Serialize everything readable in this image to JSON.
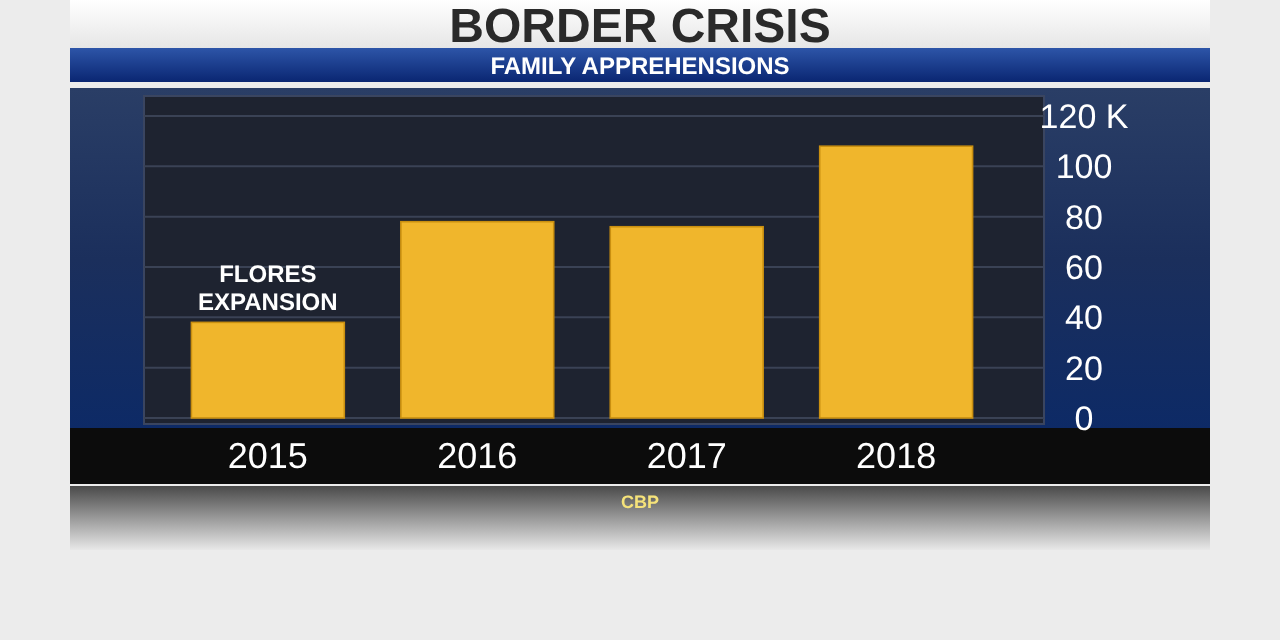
{
  "chart_data": {
    "type": "bar",
    "title": "BORDER CRISIS",
    "subtitle": "FAMILY APPREHENSIONS",
    "categories": [
      "2015",
      "2016",
      "2017",
      "2018"
    ],
    "values": [
      38,
      78,
      76,
      108
    ],
    "color": "#f0b62c",
    "ylim": [
      0,
      120
    ],
    "yticks": [
      0,
      20,
      40,
      60,
      80,
      {
        "value": 120,
        "label": "120 K"
      },
      100
    ],
    "grid": "y",
    "annotations": [
      {
        "text": "FLORES EXPANSION",
        "x": "2015",
        "y": 38
      },
      "CBP"
    ]
  }
}
